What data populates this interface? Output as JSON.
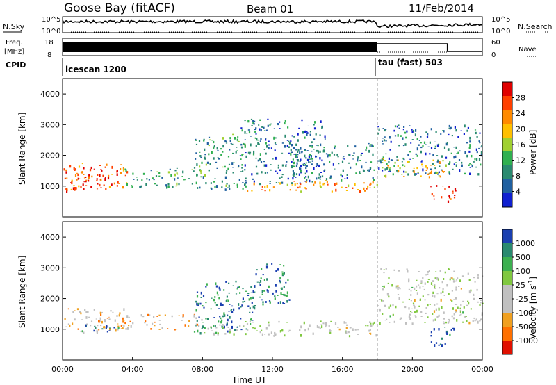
{
  "header": {
    "station": "Goose Bay (fitACF)",
    "beam": "Beam 01",
    "date": "11/Feb/2014"
  },
  "top_panels": {
    "nsky_label": "N.Sky",
    "nsearch_label": "N.Search",
    "noise_ticks": [
      "10^5",
      "10^0"
    ],
    "freq_label_1": "Freq.",
    "freq_label_2": "[MHz]",
    "freq_ticks_left": [
      "18",
      "8"
    ],
    "freq_ticks_right": [
      "60",
      "0"
    ],
    "nave_label": "Nave",
    "cpid_label": "CPID",
    "cpid_1": "icescan 1200",
    "cpid_2": "tau (fast) 503"
  },
  "chart_data": [
    {
      "type": "heatmap",
      "name": "power",
      "ylabel": "Slant Range [km]",
      "yticks": [
        "1000",
        "2000",
        "3000",
        "4000"
      ],
      "ylim": [
        0,
        4500
      ],
      "xlim": [
        0,
        24
      ],
      "colorbar": {
        "label": "Power [dB]",
        "ticks": [
          "28",
          "24",
          "20",
          "16",
          "12",
          "8",
          "4"
        ],
        "colors": [
          "#e00000",
          "#ff4000",
          "#ff8a00",
          "#ffc000",
          "#a0d030",
          "#30b050",
          "#2a8a70",
          "#2060a0",
          "#1020d0"
        ]
      },
      "regions": [
        {
          "t0": 0.0,
          "t1": 3.8,
          "r0": 850,
          "r1": 1750,
          "level": 0.8
        },
        {
          "t0": 0.5,
          "t1": 2.8,
          "r0": 900,
          "r1": 1300,
          "level": 0.95
        },
        {
          "t0": 3.5,
          "t1": 8.0,
          "r0": 1000,
          "r1": 1600,
          "level": 0.35
        },
        {
          "t0": 7.5,
          "t1": 10.5,
          "r0": 900,
          "r1": 2700,
          "level": 0.3
        },
        {
          "t0": 10.0,
          "t1": 15.0,
          "r0": 1100,
          "r1": 3200,
          "level": 0.2
        },
        {
          "t0": 10.5,
          "t1": 18.0,
          "r0": 850,
          "r1": 1200,
          "level": 0.7
        },
        {
          "t0": 13.0,
          "t1": 17.8,
          "r0": 1200,
          "r1": 2400,
          "level": 0.25
        },
        {
          "t0": 18.0,
          "t1": 24.0,
          "r0": 1400,
          "r1": 3000,
          "level": 0.22
        },
        {
          "t0": 18.2,
          "t1": 22.0,
          "r0": 1300,
          "r1": 1900,
          "level": 0.6
        },
        {
          "t0": 21.0,
          "t1": 22.5,
          "r0": 500,
          "r1": 1100,
          "level": 0.9
        }
      ]
    },
    {
      "type": "heatmap",
      "name": "velocity",
      "ylabel": "Slant Range [km]",
      "yticks": [
        "1000",
        "2000",
        "3000",
        "4000"
      ],
      "ylim": [
        0,
        4500
      ],
      "xlim": [
        0,
        24
      ],
      "xticks": [
        "00:00",
        "04:00",
        "08:00",
        "12:00",
        "16:00",
        "20:00",
        "00:00"
      ],
      "xlabel": "Time UT",
      "colorbar": {
        "label": "Velocity [m s",
        "label_exp": "-1",
        "label_end": "]",
        "ticks": [
          "1000",
          "500",
          "100",
          "25",
          "-25",
          "-100",
          "-500",
          "-1000"
        ],
        "colors": [
          "#1a3fb0",
          "#2a8a70",
          "#3cb050",
          "#80c840",
          "#c0c0c0",
          "#c0c0c0",
          "#f0a020",
          "#ff7000",
          "#e01000"
        ]
      },
      "regions": [
        {
          "t0": 0.0,
          "t1": 3.5,
          "r0": 900,
          "r1": 1700,
          "level": 0.35
        },
        {
          "t0": 1.0,
          "t1": 3.2,
          "r0": 900,
          "r1": 1200,
          "level": 0.85
        },
        {
          "t0": 3.0,
          "t1": 8.0,
          "r0": 1000,
          "r1": 1500,
          "level": 0.3
        },
        {
          "t0": 7.5,
          "t1": 11.0,
          "r0": 900,
          "r1": 2600,
          "level": 0.85
        },
        {
          "t0": 8.0,
          "t1": 18.0,
          "r0": 800,
          "r1": 1300,
          "level": 0.5
        },
        {
          "t0": 11.0,
          "t1": 13.0,
          "r0": 1800,
          "r1": 3200,
          "level": 0.85
        },
        {
          "t0": 18.0,
          "t1": 24.0,
          "r0": 1200,
          "r1": 3000,
          "level": 0.5
        },
        {
          "t0": 21.0,
          "t1": 22.5,
          "r0": 500,
          "r1": 1100,
          "level": 0.95
        }
      ]
    }
  ]
}
